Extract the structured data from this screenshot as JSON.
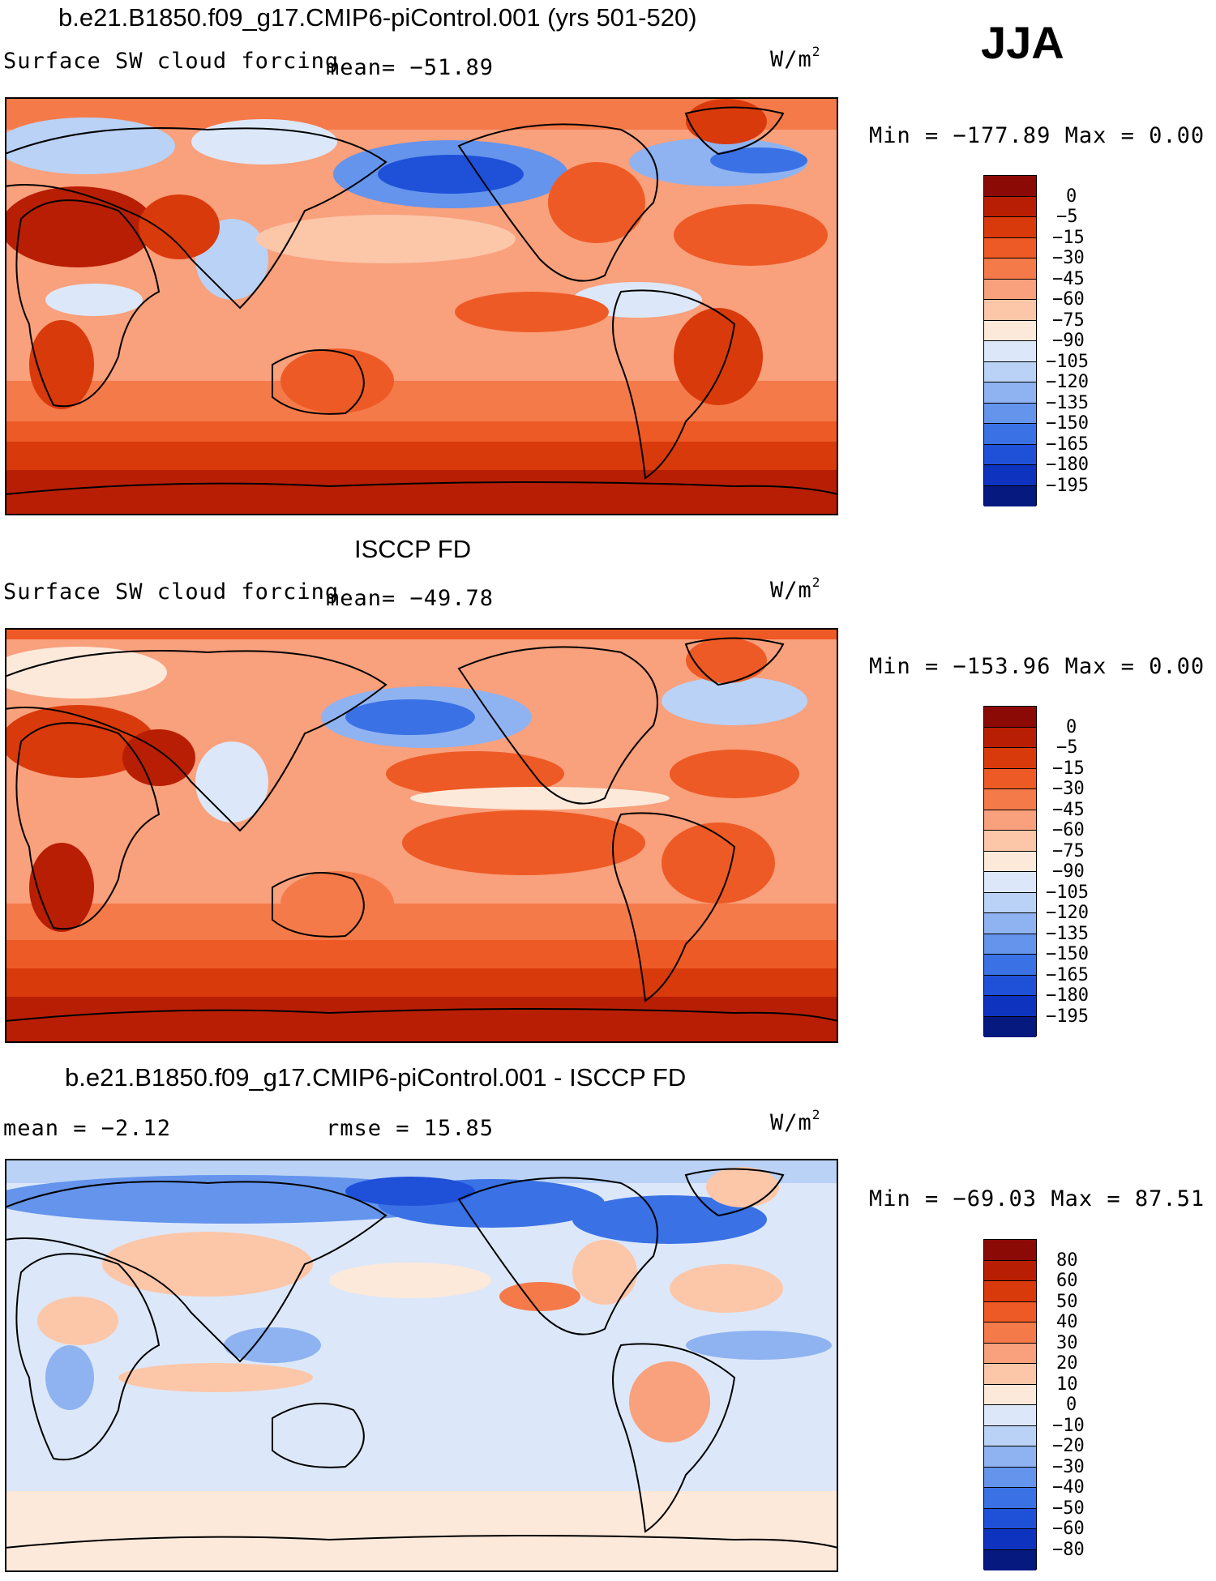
{
  "season_label": "JJA",
  "panels": [
    {
      "id": "model",
      "title": "b.e21.B1850.f09_g17.CMIP6-piControl.001 (yrs 501-520)",
      "left_label": "Surface SW cloud forcing",
      "mean_text": "mean= −51.89",
      "units": "W/m",
      "units_sup": "2",
      "minmax": "Min = −177.89 Max =    0.00",
      "colorbar": {
        "levels": [
          "0",
          "−5",
          "−15",
          "−30",
          "−45",
          "−60",
          "−75",
          "−90",
          "−105",
          "−120",
          "−135",
          "−150",
          "−165",
          "−180",
          "−195"
        ],
        "colors": [
          "#8b0a05",
          "#b81e03",
          "#d93a0b",
          "#ee5a25",
          "#f57a4a",
          "#f9a07c",
          "#fcc6a9",
          "#fde9da",
          "#dce8f9",
          "#b9d2f6",
          "#8fb3f1",
          "#6494ec",
          "#3a71e5",
          "#1f50d8",
          "#0d33bf",
          "#05197f"
        ]
      }
    },
    {
      "id": "obs",
      "title": "ISCCP FD",
      "left_label": "Surface SW cloud forcing",
      "mean_text": "mean= −49.78",
      "units": "W/m",
      "units_sup": "2",
      "minmax": "Min = −153.96 Max =    0.00",
      "colorbar": {
        "levels": [
          "0",
          "−5",
          "−15",
          "−30",
          "−45",
          "−60",
          "−75",
          "−90",
          "−105",
          "−120",
          "−135",
          "−150",
          "−165",
          "−180",
          "−195"
        ],
        "colors": [
          "#8b0a05",
          "#b81e03",
          "#d93a0b",
          "#ee5a25",
          "#f57a4a",
          "#f9a07c",
          "#fcc6a9",
          "#fde9da",
          "#dce8f9",
          "#b9d2f6",
          "#8fb3f1",
          "#6494ec",
          "#3a71e5",
          "#1f50d8",
          "#0d33bf",
          "#05197f"
        ]
      }
    },
    {
      "id": "diff",
      "title": "b.e21.B1850.f09_g17.CMIP6-piControl.001 - ISCCP FD",
      "left_label": "mean =   −2.12",
      "mean_text": "rmse =   15.85",
      "units": "W/m",
      "units_sup": "2",
      "minmax": "Min = −69.03 Max =  87.51",
      "colorbar": {
        "levels": [
          "80",
          "60",
          "50",
          "40",
          "30",
          "20",
          "10",
          "0",
          "−10",
          "−20",
          "−30",
          "−40",
          "−50",
          "−60",
          "−80"
        ],
        "colors": [
          "#8b0a05",
          "#b81e03",
          "#d93a0b",
          "#ee5a25",
          "#f57a4a",
          "#f9a07c",
          "#fcc6a9",
          "#fde9da",
          "#dce8f9",
          "#b9d2f6",
          "#8fb3f1",
          "#6494ec",
          "#3a71e5",
          "#1f50d8",
          "#0d33bf",
          "#05197f"
        ]
      }
    }
  ]
}
